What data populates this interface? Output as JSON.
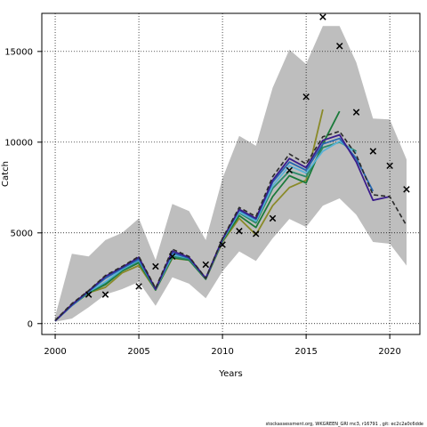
{
  "chart_data": {
    "type": "line",
    "xlabel": "Years",
    "ylabel": "Catch",
    "xlim": [
      1999.2,
      2021.8
    ],
    "ylim": [
      -600,
      17100
    ],
    "x_ticks": [
      2000,
      2005,
      2010,
      2015,
      2020
    ],
    "y_ticks": [
      0,
      5000,
      10000,
      15000
    ],
    "grid": true,
    "grid_style": "dotted",
    "confidence_band": {
      "color": "#bebebe",
      "x": [
        2000,
        2001,
        2002,
        2003,
        2004,
        2005,
        2006,
        2007,
        2008,
        2009,
        2010,
        2011,
        2012,
        2013,
        2014,
        2015,
        2016,
        2017,
        2018,
        2019,
        2020,
        2021
      ],
      "upper": [
        400,
        3850,
        3700,
        4600,
        5000,
        5800,
        3500,
        6600,
        6200,
        4600,
        8000,
        10350,
        9800,
        13000,
        15100,
        14300,
        16400,
        16400,
        14400,
        11300,
        11250,
        9050
      ],
      "lower": [
        100,
        280,
        900,
        1600,
        1900,
        2300,
        980,
        2550,
        2200,
        1400,
        2880,
        3980,
        3450,
        4700,
        5770,
        5330,
        6500,
        6900,
        6000,
        4500,
        4400,
        3200
      ]
    },
    "series": [
      {
        "color": "#2a2a2a",
        "dashed": true,
        "x": [
          2000,
          2001,
          2002,
          2003,
          2004,
          2005,
          2006,
          2007,
          2008,
          2009,
          2010,
          2011,
          2012,
          2013,
          2014,
          2015,
          2016,
          2017,
          2018,
          2019,
          2020,
          2021
        ],
        "values": [
          180,
          1100,
          1820,
          2650,
          3150,
          3700,
          1950,
          4100,
          3700,
          2500,
          4700,
          6400,
          5900,
          8100,
          9350,
          8800,
          10300,
          10600,
          9300,
          7100,
          7000,
          5400
        ]
      },
      {
        "color": "#3a1c8c",
        "x": [
          2000,
          2001,
          2002,
          2003,
          2004,
          2005,
          2006,
          2007,
          2008,
          2009,
          2010,
          2011,
          2012,
          2013,
          2014,
          2015,
          2016,
          2017,
          2018,
          2019,
          2020
        ],
        "values": [
          150,
          1050,
          1800,
          2600,
          3100,
          3650,
          1900,
          4000,
          3650,
          2500,
          4650,
          6300,
          5800,
          7900,
          9100,
          8600,
          10100,
          10400,
          8900,
          6800,
          7000
        ]
      },
      {
        "color": "#2566b0",
        "x": [
          2000,
          2001,
          2002,
          2003,
          2004,
          2005,
          2006,
          2007,
          2008,
          2009,
          2010,
          2011,
          2012,
          2013,
          2014,
          2015,
          2016,
          2017,
          2018,
          2019
        ],
        "values": [
          150,
          1000,
          1780,
          2500,
          3050,
          3550,
          1900,
          3900,
          3600,
          2500,
          4650,
          6250,
          5750,
          7800,
          8900,
          8450,
          9900,
          10200,
          9100,
          7300
        ]
      },
      {
        "color": "#5ab2d8",
        "x": [
          2000,
          2001,
          2002,
          2003,
          2004,
          2005,
          2006,
          2007,
          2008,
          2009,
          2010,
          2011,
          2012,
          2013,
          2014,
          2015,
          2016,
          2017,
          2018
        ],
        "values": [
          150,
          1000,
          1760,
          2300,
          3000,
          3500,
          1900,
          3800,
          3600,
          2500,
          4600,
          6150,
          5650,
          7600,
          8700,
          8300,
          9500,
          10050,
          9400
        ]
      },
      {
        "color": "#2a8a6a",
        "x": [
          2000,
          2001,
          2002,
          2003,
          2004,
          2005,
          2006,
          2007,
          2008,
          2009,
          2010,
          2011,
          2012,
          2013,
          2014,
          2015,
          2016,
          2017,
          2018
        ],
        "values": [
          150,
          1000,
          1750,
          2250,
          2950,
          3450,
          1900,
          3700,
          3550,
          2500,
          4600,
          6100,
          5550,
          7450,
          8400,
          8100,
          9700,
          10000,
          9500
        ]
      },
      {
        "color": "#1a7a3a",
        "x": [
          2000,
          2001,
          2002,
          2003,
          2004,
          2005,
          2006,
          2007,
          2008,
          2009,
          2010,
          2011,
          2012,
          2013,
          2014,
          2015,
          2016,
          2017
        ],
        "values": [
          150,
          1000,
          1700,
          2150,
          2900,
          3350,
          1850,
          3650,
          3500,
          2450,
          4550,
          5950,
          5300,
          7000,
          8150,
          7750,
          9900,
          11700
        ]
      },
      {
        "color": "#8a8a28",
        "x": [
          2000,
          2001,
          2002,
          2003,
          2004,
          2005,
          2006,
          2007,
          2008,
          2009,
          2010,
          2011,
          2012,
          2013,
          2014,
          2015,
          2016
        ],
        "values": [
          150,
          1050,
          1700,
          2000,
          2800,
          3200,
          1850,
          3600,
          3500,
          2450,
          4500,
          5800,
          4900,
          6500,
          7500,
          7900,
          11800
        ]
      }
    ],
    "observed": {
      "marker": "x",
      "x": [
        2002,
        2003,
        2005,
        2006,
        2007,
        2009,
        2010,
        2011,
        2012,
        2013,
        2014,
        2015,
        2016,
        2017,
        2018,
        2019,
        2020,
        2021
      ],
      "values": [
        1600,
        1600,
        2050,
        3150,
        3700,
        3250,
        4350,
        5100,
        4950,
        5800,
        8450,
        12500,
        16900,
        15300,
        11650,
        9500,
        8700,
        7400
      ]
    }
  },
  "footer": "stockassessment.org, WKGREEN_GRI mc3, r16791 , git: ec2c2a0c6dde"
}
